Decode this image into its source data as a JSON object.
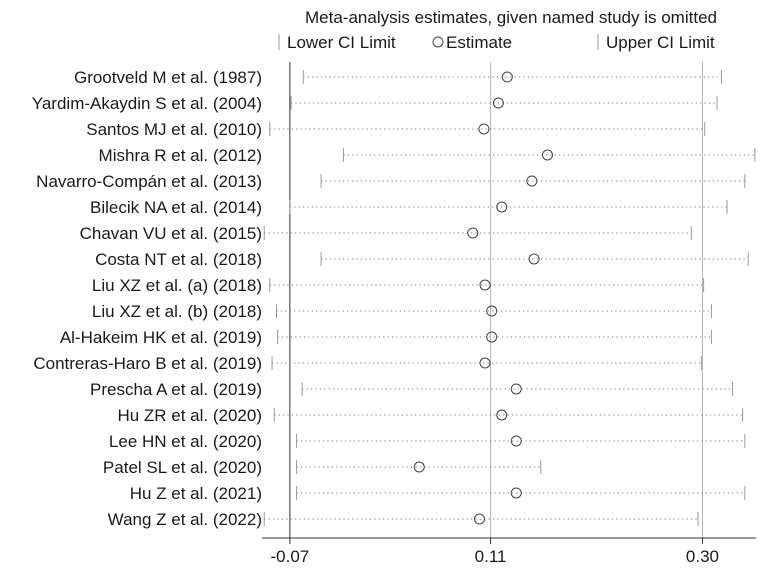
{
  "chart_data": {
    "type": "forest",
    "title": "Meta-analysis estimates, given named study is omitted",
    "legend": {
      "lower": "Lower CI Limit",
      "estimate": "Estimate",
      "upper": "Upper CI Limit"
    },
    "x_ticks": [
      -0.07,
      0.11,
      0.3
    ],
    "x_tick_labels": [
      "-0.07",
      "0.11",
      "0.30"
    ],
    "xlim": [
      -0.095,
      0.348
    ],
    "studies": [
      {
        "label": "Grootveld M et al. (1987)",
        "lower": -0.058,
        "estimate": 0.125,
        "upper": 0.317
      },
      {
        "label": "Yardim-Akaydin S et al. (2004)",
        "lower": -0.069,
        "estimate": 0.117,
        "upper": 0.313
      },
      {
        "label": "Santos MJ et al. (2010)",
        "lower": -0.088,
        "estimate": 0.104,
        "upper": 0.302
      },
      {
        "label": "Mishra R et al. (2012)",
        "lower": -0.022,
        "estimate": 0.161,
        "upper": 0.347
      },
      {
        "label": "Navarro-Compán et al. (2013)",
        "lower": -0.042,
        "estimate": 0.147,
        "upper": 0.338
      },
      {
        "label": "Bilecik NA et al. (2014)",
        "lower": -0.07,
        "estimate": 0.12,
        "upper": 0.322
      },
      {
        "label": "Chavan VU et al. (2015)",
        "lower": -0.093,
        "estimate": 0.094,
        "upper": 0.29
      },
      {
        "label": "Costa NT et al. (2018)",
        "lower": -0.042,
        "estimate": 0.149,
        "upper": 0.341
      },
      {
        "label": "Liu XZ et al. (a) (2018)",
        "lower": -0.088,
        "estimate": 0.105,
        "upper": 0.301
      },
      {
        "label": "Liu XZ et al. (b) (2018)",
        "lower": -0.082,
        "estimate": 0.111,
        "upper": 0.308
      },
      {
        "label": "Al-Hakeim HK et al. (2019)",
        "lower": -0.081,
        "estimate": 0.111,
        "upper": 0.308
      },
      {
        "label": "Contreras-Haro B et al. (2019)",
        "lower": -0.086,
        "estimate": 0.105,
        "upper": 0.299
      },
      {
        "label": "Prescha A et al. (2019)",
        "lower": -0.059,
        "estimate": 0.133,
        "upper": 0.327
      },
      {
        "label": "Hu ZR et al. (2020)",
        "lower": -0.084,
        "estimate": 0.12,
        "upper": 0.336
      },
      {
        "label": "Lee HN et al. (2020)",
        "lower": -0.064,
        "estimate": 0.133,
        "upper": 0.338
      },
      {
        "label": "Patel SL et al. (2020)",
        "lower": -0.064,
        "estimate": 0.046,
        "upper": 0.155
      },
      {
        "label": "Hu Z et al. (2021)",
        "lower": -0.064,
        "estimate": 0.133,
        "upper": 0.338
      },
      {
        "label": "Wang Z et al. (2022)",
        "lower": -0.093,
        "estimate": 0.1,
        "upper": 0.296
      }
    ],
    "reference_lines": [
      -0.07,
      0.11,
      0.3
    ],
    "grid": false
  }
}
